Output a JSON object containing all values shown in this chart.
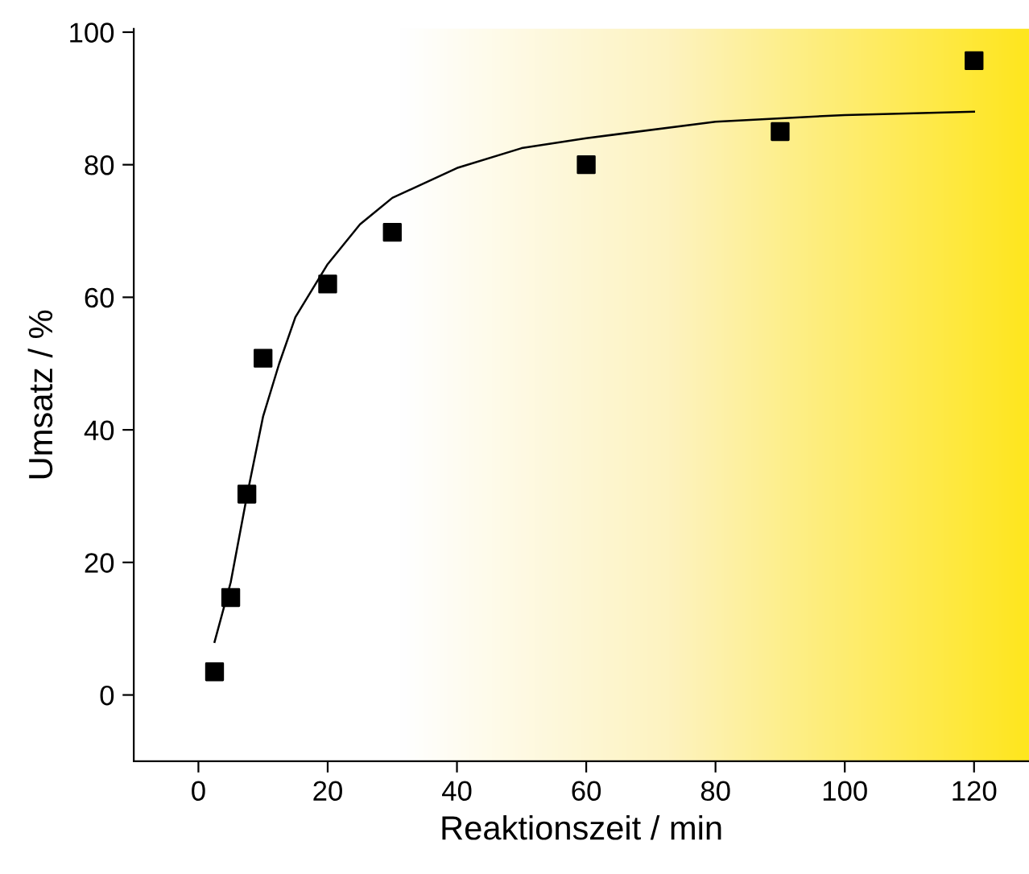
{
  "chart_data": {
    "type": "scatter",
    "xlabel": "Reaktionszeit / min",
    "ylabel": "Umsatz / %",
    "xlim": [
      -10,
      128.5
    ],
    "ylim": [
      -10,
      100.5
    ],
    "xticks": [
      0,
      20,
      40,
      60,
      80,
      100,
      120
    ],
    "yticks": [
      0,
      20,
      40,
      60,
      80,
      100
    ],
    "grid": false,
    "legend": false,
    "marker": "square",
    "series": [
      {
        "color": "#000000",
        "x": [
          2.5,
          5,
          7.5,
          10,
          20,
          30,
          60,
          90,
          120
        ],
        "values": [
          3.5,
          14.7,
          30.3,
          50.8,
          62,
          69.8,
          80,
          85,
          95.7
        ]
      },
      {
        "type": "line",
        "color": "#000000",
        "line_style": "solid",
        "marker": "none",
        "x": [
          2.5,
          5,
          7.5,
          10,
          12.5,
          15,
          20,
          25,
          30,
          40,
          50,
          60,
          80,
          100,
          120
        ],
        "values": [
          8,
          17,
          30,
          42,
          50,
          57,
          65,
          71,
          75,
          79.5,
          82.5,
          84,
          86.5,
          87.5,
          88
        ]
      }
    ]
  }
}
